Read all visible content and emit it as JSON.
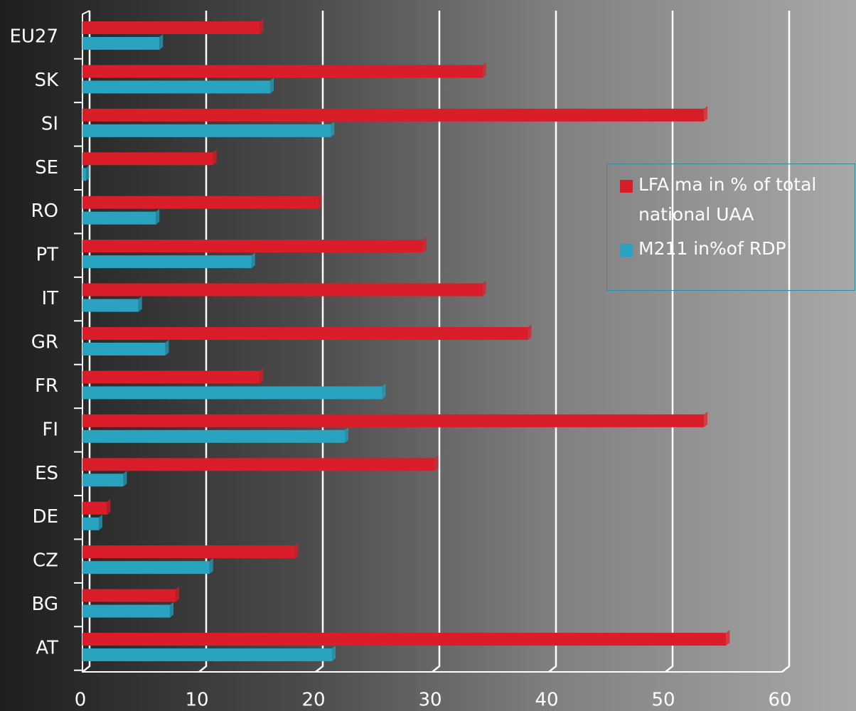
{
  "chart_data": {
    "type": "hbar",
    "categories": [
      "AT",
      "BG",
      "CZ",
      "DE",
      "ES",
      "FI",
      "FR",
      "GR",
      "IT",
      "PT",
      "RO",
      "SE",
      "SI",
      "SK",
      "EU27"
    ],
    "series": [
      {
        "name": "LFA ma in % of total national UAA",
        "color": "#d91e2a",
        "values": [
          55.2,
          8.0,
          18.2,
          2.1,
          30.2,
          53.3,
          15.2,
          38.2,
          34.3,
          29.2,
          20.2,
          11.2,
          53.3,
          34.3,
          15.2
        ]
      },
      {
        "name": "M211 in%of RDP",
        "color": "#2aa3c0",
        "values": [
          21.4,
          7.5,
          10.9,
          1.4,
          3.5,
          22.5,
          25.7,
          7.1,
          4.8,
          14.5,
          6.3,
          0.3,
          21.3,
          16.1,
          6.6
        ]
      }
    ],
    "xlim": [
      0,
      60
    ],
    "xticks": [
      0,
      10,
      20,
      30,
      40,
      50,
      60
    ],
    "grid": true,
    "legend": "right"
  }
}
